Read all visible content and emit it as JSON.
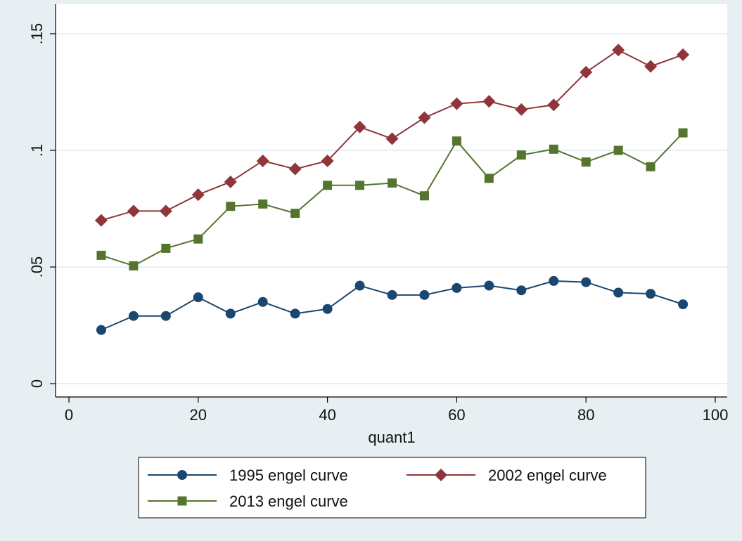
{
  "chart_data": {
    "type": "line",
    "xlabel": "quant1",
    "ylabel": "",
    "xlim": [
      0,
      100
    ],
    "ylim": [
      0,
      0.15
    ],
    "x_ticks": [
      0,
      20,
      40,
      60,
      80,
      100
    ],
    "x_tick_labels": [
      "0",
      "20",
      "40",
      "60",
      "80",
      "100"
    ],
    "y_ticks": [
      0,
      0.05,
      0.1,
      0.15
    ],
    "y_tick_labels": [
      "0",
      ".05",
      ".1",
      ".15"
    ],
    "grid": "horizontal",
    "legend_position": "bottom",
    "x": [
      5,
      10,
      15,
      20,
      25,
      30,
      35,
      40,
      45,
      50,
      55,
      60,
      65,
      70,
      75,
      80,
      85,
      90,
      95
    ],
    "series": [
      {
        "name": "1995 engel curve",
        "color": "#1a476f",
        "marker": "circle",
        "values": [
          0.023,
          0.029,
          0.029,
          0.037,
          0.03,
          0.035,
          0.03,
          0.032,
          0.042,
          0.038,
          0.038,
          0.041,
          0.042,
          0.04,
          0.044,
          0.0435,
          0.039,
          0.0385,
          0.034
        ]
      },
      {
        "name": "2002 engel curve",
        "color": "#90353b",
        "marker": "diamond",
        "values": [
          0.07,
          0.074,
          0.074,
          0.081,
          0.0865,
          0.0955,
          0.092,
          0.0955,
          0.11,
          0.105,
          0.114,
          0.12,
          0.121,
          0.1175,
          0.1195,
          0.1335,
          0.143,
          0.136,
          0.141
        ]
      },
      {
        "name": "2013 engel curve",
        "color": "#55752f",
        "marker": "square",
        "values": [
          0.055,
          0.0505,
          0.058,
          0.062,
          0.076,
          0.077,
          0.073,
          0.085,
          0.085,
          0.086,
          0.0805,
          0.104,
          0.088,
          0.098,
          0.1005,
          0.095,
          0.1,
          0.093,
          0.1075
        ]
      }
    ]
  },
  "colors": {
    "outer_background": "#e8eff3",
    "plot_background": "#ffffff",
    "gridline": "#e8eff3"
  }
}
